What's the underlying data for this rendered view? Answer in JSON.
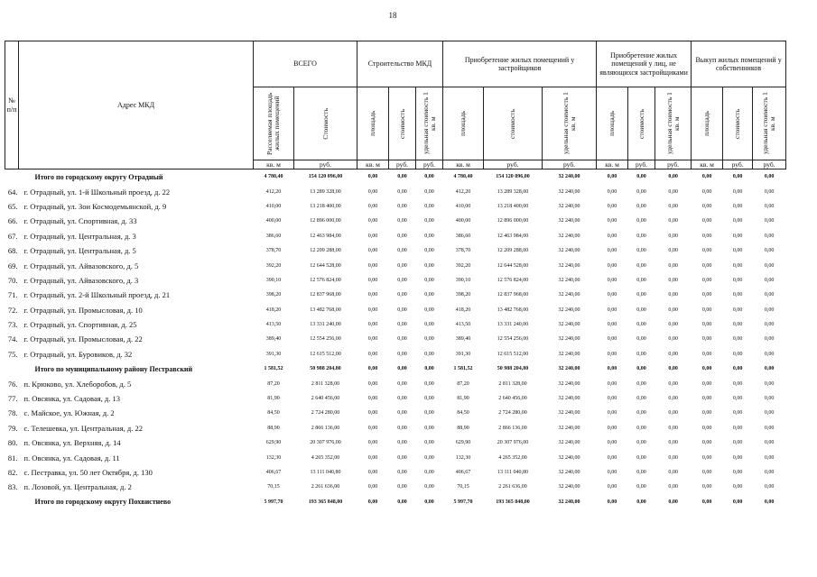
{
  "page_number": "18",
  "header": {
    "number_label": "№ п/п",
    "address_label": "Адрес МКД",
    "groups": [
      {
        "title": "ВСЕГО",
        "subheaders": [
          "Расселяемая площадь жилых помещений",
          "Стоимость"
        ],
        "units": [
          "кв. м",
          "руб."
        ]
      },
      {
        "title": "Строительство МКД",
        "subheaders": [
          "площадь",
          "стоимость",
          "удельная стоимость 1 кв. м"
        ],
        "units": [
          "кв. м",
          "руб.",
          "руб."
        ]
      },
      {
        "title": "Приобретение жилых помещений у застройщиков",
        "subheaders": [
          "площадь",
          "стоимость",
          "удельная стоимость 1 кв. м"
        ],
        "units": [
          "кв. м",
          "руб.",
          "руб."
        ]
      },
      {
        "title": "Приобретение жилых помещений у лиц, не являющихся застройщиками",
        "subheaders": [
          "площадь",
          "стоимость",
          "удельная стоимость 1 кв. м"
        ],
        "units": [
          "кв. м",
          "руб.",
          "руб."
        ]
      },
      {
        "title": "Выкуп жилых помещений у собственников",
        "subheaders": [
          "площадь",
          "стоимость",
          "удельная стоимость 1 кв. м"
        ],
        "units": [
          "кв. м",
          "руб.",
          "руб."
        ]
      }
    ]
  },
  "rows": [
    {
      "address": "Итого по городскому округу Отрадный",
      "cells": [
        "4 780,40",
        "154 120 096,00",
        "0,00",
        "0,00",
        "0,00",
        "4 780,40",
        "154 120 096,00",
        "32 240,00",
        "0,00",
        "0,00",
        "0,00",
        "0,00",
        "0,00",
        "0,00"
      ]
    },
    {
      "number": "64.",
      "address": "г. Отрадный, ул. 1-й Школьный проезд, д. 22",
      "cells": [
        "412,20",
        "13 289 328,00",
        "0,00",
        "0,00",
        "0,00",
        "412,20",
        "13 289 328,00",
        "32 240,00",
        "0,00",
        "0,00",
        "0,00",
        "0,00",
        "0,00",
        "0,00"
      ]
    },
    {
      "number": "65.",
      "address": "г. Отрадный, ул. Зои Космодемьянской, д. 9",
      "cells": [
        "410,00",
        "13 218 400,00",
        "0,00",
        "0,00",
        "0,00",
        "410,00",
        "13 218 400,00",
        "32 240,00",
        "0,00",
        "0,00",
        "0,00",
        "0,00",
        "0,00",
        "0,00"
      ]
    },
    {
      "number": "66.",
      "address": "г. Отрадный, ул. Спортивная, д. 33",
      "cells": [
        "400,00",
        "12 896 000,00",
        "0,00",
        "0,00",
        "0,00",
        "400,00",
        "12 896 000,00",
        "32 240,00",
        "0,00",
        "0,00",
        "0,00",
        "0,00",
        "0,00",
        "0,00"
      ]
    },
    {
      "number": "67.",
      "address": "г. Отрадный, ул. Центральная, д. 3",
      "cells": [
        "386,60",
        "12 463 984,00",
        "0,00",
        "0,00",
        "0,00",
        "386,60",
        "12 463 984,00",
        "32 240,00",
        "0,00",
        "0,00",
        "0,00",
        "0,00",
        "0,00",
        "0,00"
      ]
    },
    {
      "number": "68.",
      "address": "г. Отрадный, ул. Центральная, д. 5",
      "cells": [
        "378,70",
        "12 209 288,00",
        "0,00",
        "0,00",
        "0,00",
        "378,70",
        "12 209 288,00",
        "32 240,00",
        "0,00",
        "0,00",
        "0,00",
        "0,00",
        "0,00",
        "0,00"
      ]
    },
    {
      "number": "69.",
      "address": "г. Отрадный, ул. Айвазовского, д. 5",
      "cells": [
        "392,20",
        "12 644 528,00",
        "0,00",
        "0,00",
        "0,00",
        "392,20",
        "12 644 528,00",
        "32 240,00",
        "0,00",
        "0,00",
        "0,00",
        "0,00",
        "0,00",
        "0,00"
      ]
    },
    {
      "number": "70.",
      "address": "г. Отрадный, ул. Айвазовского, д. 3",
      "cells": [
        "390,10",
        "12 576 824,00",
        "0,00",
        "0,00",
        "0,00",
        "390,10",
        "12 576 824,00",
        "32 240,00",
        "0,00",
        "0,00",
        "0,00",
        "0,00",
        "0,00",
        "0,00"
      ]
    },
    {
      "number": "71.",
      "address": "г. Отрадный, ул. 2-й Школьный проезд, д. 21",
      "cells": [
        "398,20",
        "12 837 968,00",
        "0,00",
        "0,00",
        "0,00",
        "398,20",
        "12 837 968,00",
        "32 240,00",
        "0,00",
        "0,00",
        "0,00",
        "0,00",
        "0,00",
        "0,00"
      ]
    },
    {
      "number": "72.",
      "address": "г. Отрадный, ул. Промысловая, д. 10",
      "cells": [
        "418,20",
        "13 482 768,00",
        "0,00",
        "0,00",
        "0,00",
        "418,20",
        "13 482 768,00",
        "32 240,00",
        "0,00",
        "0,00",
        "0,00",
        "0,00",
        "0,00",
        "0,00"
      ]
    },
    {
      "number": "73.",
      "address": "г. Отрадный, ул. Спортивная, д. 25",
      "cells": [
        "413,50",
        "13 331 240,00",
        "0,00",
        "0,00",
        "0,00",
        "413,50",
        "13 331 240,00",
        "32 240,00",
        "0,00",
        "0,00",
        "0,00",
        "0,00",
        "0,00",
        "0,00"
      ]
    },
    {
      "number": "74.",
      "address": "г. Отрадный, ул. Промысловая, д. 22",
      "cells": [
        "389,40",
        "12 554 256,00",
        "0,00",
        "0,00",
        "0,00",
        "389,40",
        "12 554 256,00",
        "32 240,00",
        "0,00",
        "0,00",
        "0,00",
        "0,00",
        "0,00",
        "0,00"
      ]
    },
    {
      "number": "75.",
      "address": "г. Отрадный, ул. Буровиков, д. 32",
      "cells": [
        "391,30",
        "12 615 512,00",
        "0,00",
        "0,00",
        "0,00",
        "391,30",
        "12 615 512,00",
        "32 240,00",
        "0,00",
        "0,00",
        "0,00",
        "0,00",
        "0,00",
        "0,00"
      ]
    },
    {
      "address": "Итого по муниципальному району Пестравский",
      "cells": [
        "1 581,52",
        "50 988 204,80",
        "0,00",
        "0,00",
        "0,00",
        "1 581,52",
        "50 988 204,80",
        "32 240,00",
        "0,00",
        "0,00",
        "0,00",
        "0,00",
        "0,00",
        "0,00"
      ]
    },
    {
      "number": "76.",
      "address": "п. Крюково, ул. Хлеборобов, д. 5",
      "cells": [
        "87,20",
        "2 811 328,00",
        "0,00",
        "0,00",
        "0,00",
        "87,20",
        "2 811 328,00",
        "32 240,00",
        "0,00",
        "0,00",
        "0,00",
        "0,00",
        "0,00",
        "0,00"
      ]
    },
    {
      "number": "77.",
      "address": "п. Овсянка, ул. Садовая, д. 13",
      "cells": [
        "81,90",
        "2 640 456,00",
        "0,00",
        "0,00",
        "0,00",
        "81,90",
        "2 640 456,00",
        "32 240,00",
        "0,00",
        "0,00",
        "0,00",
        "0,00",
        "0,00",
        "0,00"
      ]
    },
    {
      "number": "78.",
      "address": "с. Майское, ул. Южная, д. 2",
      "cells": [
        "84,50",
        "2 724 280,00",
        "0,00",
        "0,00",
        "0,00",
        "84,50",
        "2 724 280,00",
        "32 240,00",
        "0,00",
        "0,00",
        "0,00",
        "0,00",
        "0,00",
        "0,00"
      ]
    },
    {
      "number": "79.",
      "address": "с. Телешевка, ул. Центральная, д. 22",
      "cells": [
        "88,90",
        "2 866 136,00",
        "0,00",
        "0,00",
        "0,00",
        "88,90",
        "2 866 136,00",
        "32 240,00",
        "0,00",
        "0,00",
        "0,00",
        "0,00",
        "0,00",
        "0,00"
      ]
    },
    {
      "number": "80.",
      "address": "п. Овсянка, ул. Верхняя, д. 14",
      "cells": [
        "629,90",
        "20 307 976,00",
        "0,00",
        "0,00",
        "0,00",
        "629,90",
        "20 307 976,00",
        "32 240,00",
        "0,00",
        "0,00",
        "0,00",
        "0,00",
        "0,00",
        "0,00"
      ]
    },
    {
      "number": "81.",
      "address": "п. Овсянка, ул. Садовая, д. 11",
      "cells": [
        "132,30",
        "4 265 352,00",
        "0,00",
        "0,00",
        "0,00",
        "132,30",
        "4 265 352,00",
        "32 240,00",
        "0,00",
        "0,00",
        "0,00",
        "0,00",
        "0,00",
        "0,00"
      ]
    },
    {
      "number": "82.",
      "address": "с. Пестравка, ул. 50 лет Октября, д. 130",
      "cells": [
        "406,67",
        "13 111 040,80",
        "0,00",
        "0,00",
        "0,00",
        "406,67",
        "13 111 040,80",
        "32 240,00",
        "0,00",
        "0,00",
        "0,00",
        "0,00",
        "0,00",
        "0,00"
      ]
    },
    {
      "number": "83.",
      "address": "п. Лозовой, ул. Центральная, д. 2",
      "cells": [
        "70,15",
        "2 261 636,00",
        "0,00",
        "0,00",
        "0,00",
        "70,15",
        "2 261 636,00",
        "32 240,00",
        "0,00",
        "0,00",
        "0,00",
        "0,00",
        "0,00",
        "0,00"
      ]
    },
    {
      "address": "Итого по городскому округу Похвистнево",
      "cells": [
        "5 997,70",
        "193 365 848,00",
        "0,00",
        "0,00",
        "0,00",
        "5 997,70",
        "193 365 848,00",
        "32 240,00",
        "0,00",
        "0,00",
        "0,00",
        "0,00",
        "0,00",
        "0,00"
      ]
    }
  ]
}
